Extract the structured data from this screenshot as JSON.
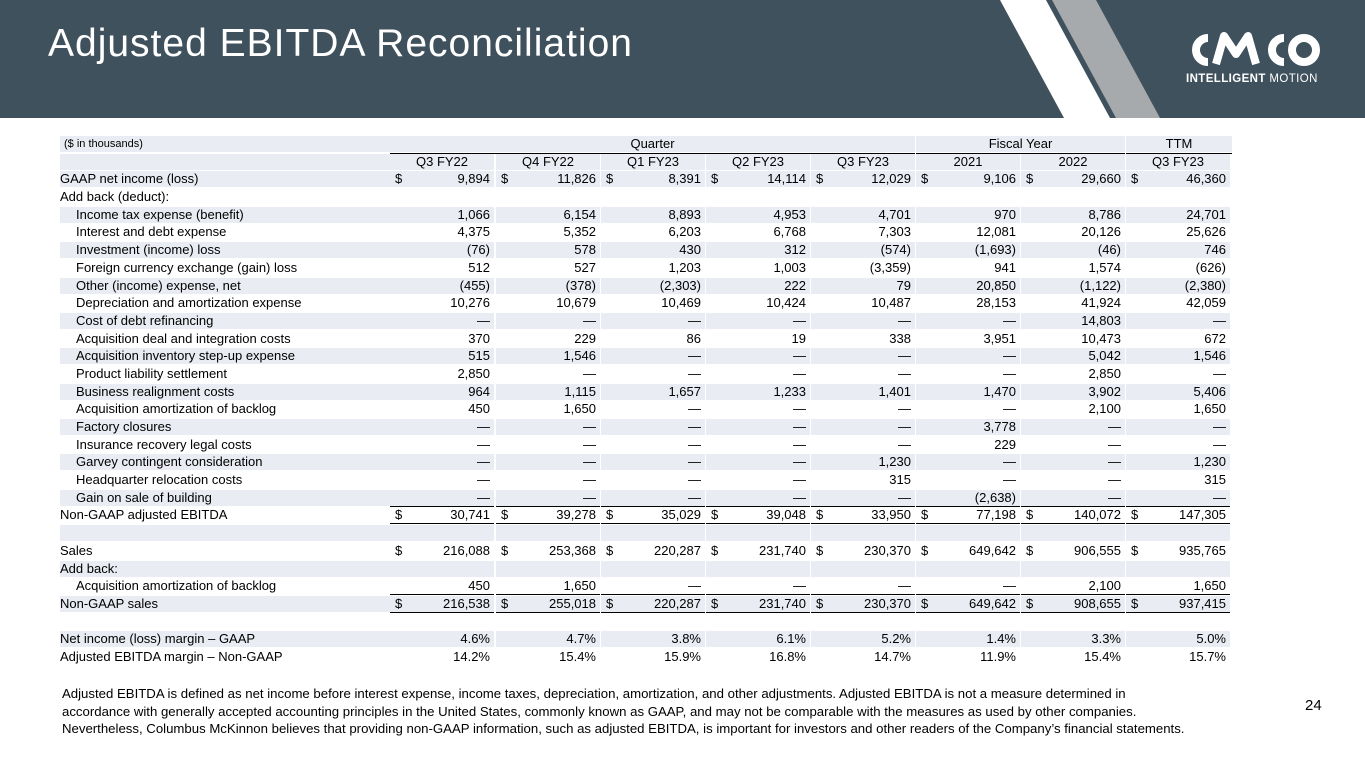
{
  "title": "Adjusted EBITDA Reconciliation",
  "logo": {
    "wordmark": "CMCO",
    "tagline_bold": "INTELLIGENT",
    "tagline_rest": " MOTION"
  },
  "page_number": "24",
  "table": {
    "unit_note": "($ in thousands)",
    "group_headers": {
      "quarter": "Quarter",
      "fiscal_year": "Fiscal Year",
      "ttm": "TTM"
    },
    "columns": [
      "Q3 FY22",
      "Q4 FY22",
      "Q1 FY23",
      "Q2 FY23",
      "Q3 FY23",
      "2021",
      "2022",
      "Q3 FY23"
    ],
    "rows": [
      {
        "label": "GAAP net income (loss)",
        "indent": false,
        "dollar": true,
        "values": [
          "9,894",
          "11,826",
          "8,391",
          "14,114",
          "12,029",
          "9,106",
          "29,660",
          "46,360"
        ]
      },
      {
        "label": "Add back (deduct):",
        "indent": false,
        "values": [
          "",
          "",
          "",
          "",
          "",
          "",
          "",
          ""
        ]
      },
      {
        "label": "Income tax expense (benefit)",
        "indent": true,
        "values": [
          "1,066",
          "6,154",
          "8,893",
          "4,953",
          "4,701",
          "970",
          "8,786",
          "24,701"
        ]
      },
      {
        "label": "Interest and debt expense",
        "indent": true,
        "values": [
          "4,375",
          "5,352",
          "6,203",
          "6,768",
          "7,303",
          "12,081",
          "20,126",
          "25,626"
        ]
      },
      {
        "label": "Investment (income) loss",
        "indent": true,
        "values": [
          "(76)",
          "578",
          "430",
          "312",
          "(574)",
          "(1,693)",
          "(46)",
          "746"
        ]
      },
      {
        "label": "Foreign currency exchange (gain) loss",
        "indent": true,
        "values": [
          "512",
          "527",
          "1,203",
          "1,003",
          "(3,359)",
          "941",
          "1,574",
          "(626)"
        ]
      },
      {
        "label": "Other (income) expense, net",
        "indent": true,
        "values": [
          "(455)",
          "(378)",
          "(2,303)",
          "222",
          "79",
          "20,850",
          "(1,122)",
          "(2,380)"
        ]
      },
      {
        "label": "Depreciation and amortization expense",
        "indent": true,
        "values": [
          "10,276",
          "10,679",
          "10,469",
          "10,424",
          "10,487",
          "28,153",
          "41,924",
          "42,059"
        ]
      },
      {
        "label": "Cost of debt refinancing",
        "indent": true,
        "values": [
          "—",
          "—",
          "—",
          "—",
          "—",
          "—",
          "14,803",
          "—"
        ]
      },
      {
        "label": "Acquisition deal and integration costs",
        "indent": true,
        "values": [
          "370",
          "229",
          "86",
          "19",
          "338",
          "3,951",
          "10,473",
          "672"
        ]
      },
      {
        "label": "Acquisition inventory step-up expense",
        "indent": true,
        "values": [
          "515",
          "1,546",
          "—",
          "—",
          "—",
          "—",
          "5,042",
          "1,546"
        ]
      },
      {
        "label": "Product liability settlement",
        "indent": true,
        "values": [
          "2,850",
          "—",
          "—",
          "—",
          "—",
          "—",
          "2,850",
          "—"
        ]
      },
      {
        "label": "Business realignment costs",
        "indent": true,
        "values": [
          "964",
          "1,115",
          "1,657",
          "1,233",
          "1,401",
          "1,470",
          "3,902",
          "5,406"
        ]
      },
      {
        "label": "Acquisition amortization of backlog",
        "indent": true,
        "values": [
          "450",
          "1,650",
          "—",
          "—",
          "—",
          "—",
          "2,100",
          "1,650"
        ]
      },
      {
        "label": "Factory closures",
        "indent": true,
        "values": [
          "—",
          "—",
          "—",
          "—",
          "—",
          "3,778",
          "—",
          "—"
        ]
      },
      {
        "label": "Insurance recovery legal costs",
        "indent": true,
        "values": [
          "—",
          "—",
          "—",
          "—",
          "—",
          "229",
          "—",
          "—"
        ]
      },
      {
        "label": "Garvey contingent consideration",
        "indent": true,
        "values": [
          "—",
          "—",
          "—",
          "—",
          "1,230",
          "—",
          "—",
          "1,230"
        ]
      },
      {
        "label": "Headquarter relocation costs",
        "indent": true,
        "values": [
          "—",
          "—",
          "—",
          "—",
          "315",
          "—",
          "—",
          "315"
        ]
      },
      {
        "label": "Gain on sale of building",
        "indent": true,
        "underline": true,
        "values": [
          "—",
          "—",
          "—",
          "—",
          "—",
          "(2,638)",
          "—",
          "—"
        ]
      },
      {
        "label": "Non-GAAP adjusted EBITDA",
        "indent": false,
        "dollar": true,
        "underline": true,
        "values": [
          "30,741",
          "39,278",
          "35,029",
          "39,048",
          "33,950",
          "77,198",
          "140,072",
          "147,305"
        ]
      },
      {
        "label": "",
        "indent": false,
        "values": [
          "",
          "",
          "",
          "",
          "",
          "",
          "",
          ""
        ]
      },
      {
        "label": "Sales",
        "indent": false,
        "dollar": true,
        "values": [
          "216,088",
          "253,368",
          "220,287",
          "231,740",
          "230,370",
          "649,642",
          "906,555",
          "935,765"
        ]
      },
      {
        "label": "Add back:",
        "indent": false,
        "values": [
          "",
          "",
          "",
          "",
          "",
          "",
          "",
          ""
        ]
      },
      {
        "label": "Acquisition amortization of backlog",
        "indent": true,
        "underline": true,
        "values": [
          "450",
          "1,650",
          "—",
          "—",
          "—",
          "—",
          "2,100",
          "1,650"
        ]
      },
      {
        "label": "Non-GAAP sales",
        "indent": false,
        "dollar": true,
        "underline": true,
        "values": [
          "216,538",
          "255,018",
          "220,287",
          "231,740",
          "230,370",
          "649,642",
          "908,655",
          "937,415"
        ]
      },
      {
        "label": "",
        "indent": false,
        "values": [
          "",
          "",
          "",
          "",
          "",
          "",
          "",
          ""
        ]
      },
      {
        "label": "Net income (loss) margin – GAAP",
        "indent": false,
        "values": [
          "4.6%",
          "4.7%",
          "3.8%",
          "6.1%",
          "5.2%",
          "1.4%",
          "3.3%",
          "5.0%"
        ]
      },
      {
        "label": "Adjusted EBITDA margin – Non-GAAP",
        "indent": false,
        "values": [
          "14.2%",
          "15.4%",
          "15.9%",
          "16.8%",
          "14.7%",
          "11.9%",
          "15.4%",
          "15.7%"
        ]
      }
    ]
  },
  "footnote": "Adjusted EBITDA is defined as net income before interest expense, income taxes, depreciation, amortization, and other adjustments.  Adjusted EBITDA is not a measure determined in accordance with generally accepted accounting principles in the United States, commonly known as GAAP, and may not be comparable with the measures as used by other companies.  Nevertheless, Columbus McKinnon believes that providing non-GAAP information, such as adjusted EBITDA, is important for investors and other readers of the Company’s financial statements.",
  "colors": {
    "header_bg": "#3f515c",
    "band": "#e9ecf3",
    "stripe_light": "#a7aaad"
  }
}
